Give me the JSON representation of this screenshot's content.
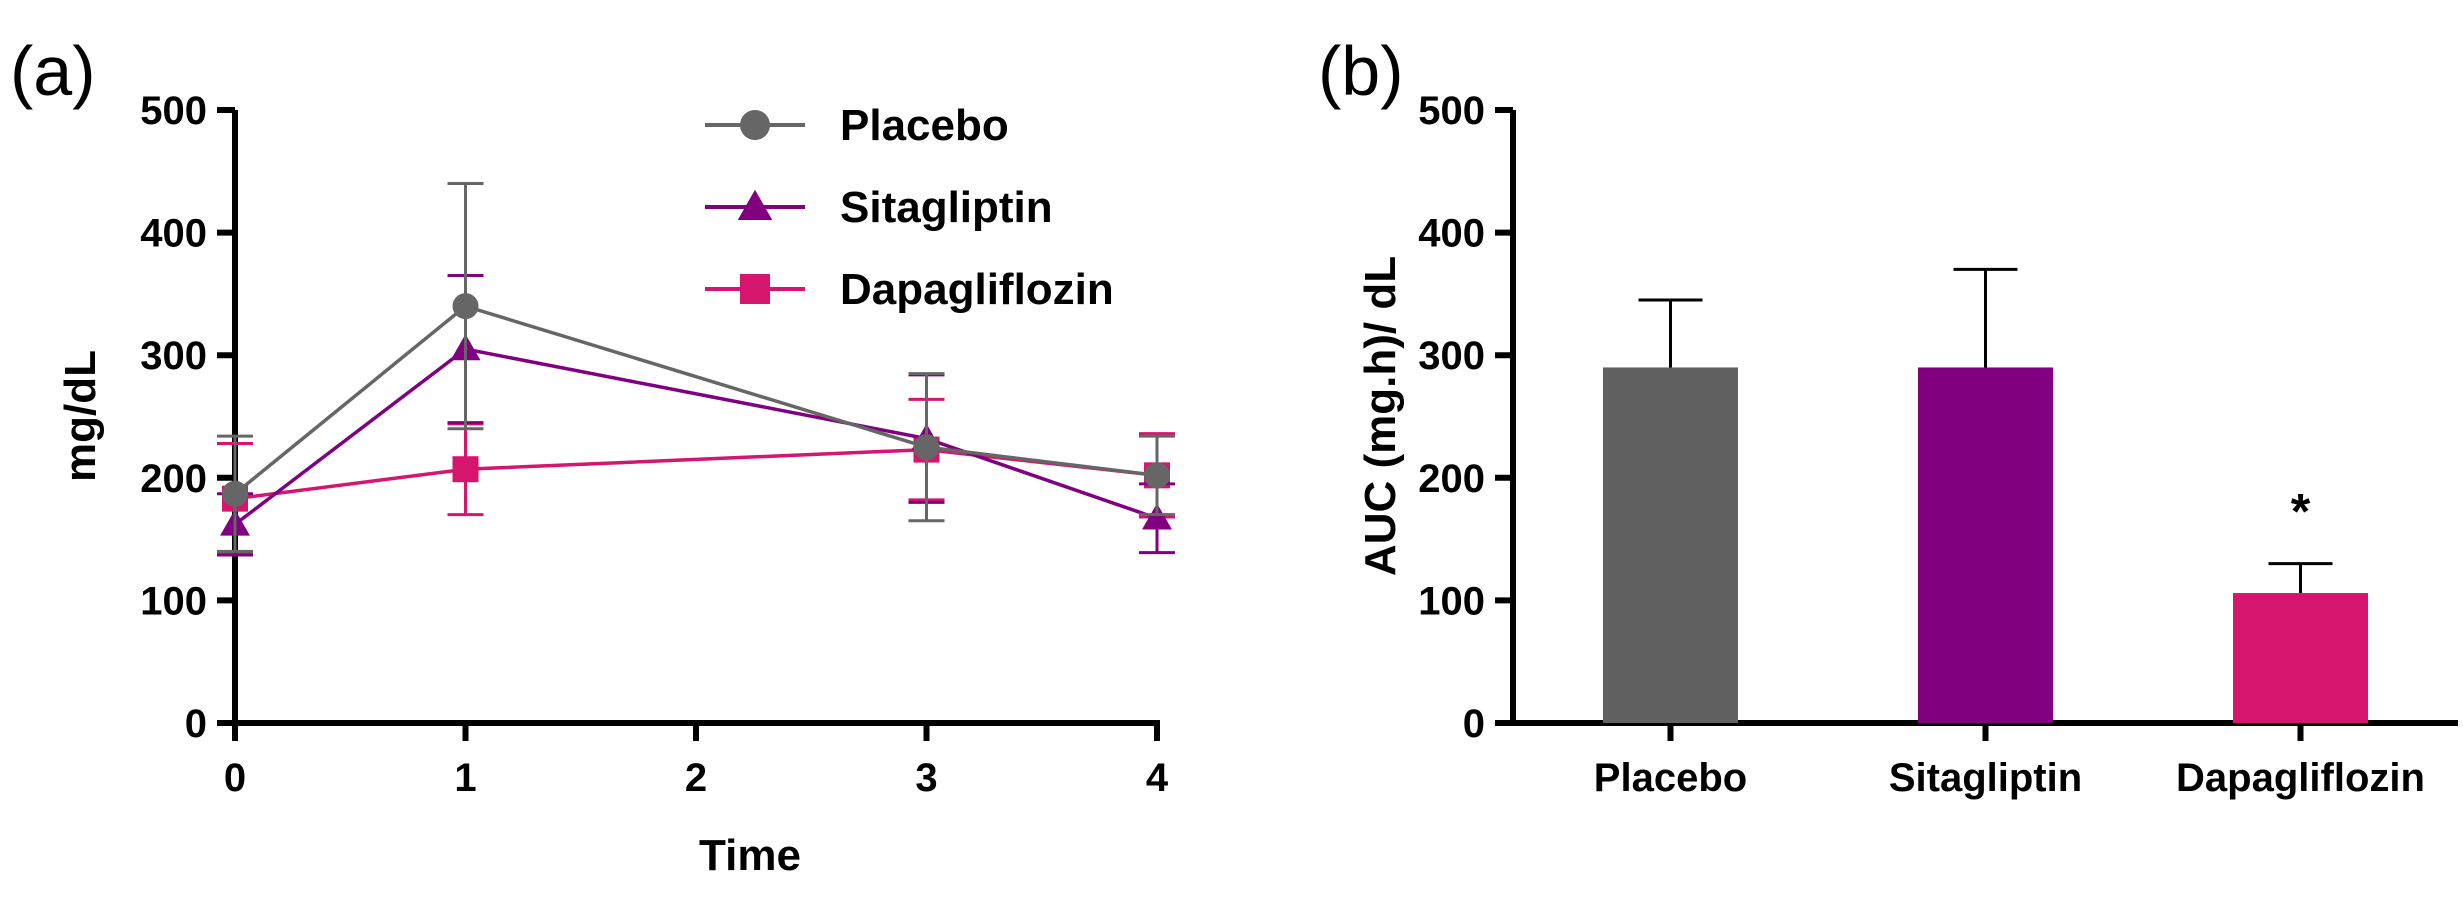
{
  "chart_data": [
    {
      "panel": "(a)",
      "type": "line",
      "xlabel": "Time",
      "ylabel": "mg/dL",
      "x": [
        0,
        1,
        3,
        4
      ],
      "xticks": [
        "0",
        "1",
        "2",
        "3",
        "4"
      ],
      "xlim": [
        0,
        4
      ],
      "yticks": [
        "0",
        "100",
        "200",
        "300",
        "400",
        "500"
      ],
      "ylim": [
        0,
        500
      ],
      "legend_position": "top-right",
      "series": [
        {
          "name": "Placebo",
          "marker": "circle",
          "color": "#666666",
          "values": [
            187,
            340,
            225,
            202
          ],
          "errors": [
            47,
            100,
            60,
            32
          ]
        },
        {
          "name": "Sitagliptin",
          "marker": "triangle",
          "color": "#800080",
          "values": [
            162,
            305,
            232,
            167
          ],
          "errors": [
            25,
            60,
            52,
            28
          ]
        },
        {
          "name": "Dapagliflozin",
          "marker": "square",
          "color": "#D6156F",
          "values": [
            183,
            207,
            223,
            202
          ],
          "errors": [
            45,
            37,
            41,
            34
          ]
        }
      ]
    },
    {
      "panel": "(b)",
      "type": "bar",
      "ylabel": "AUC (mg.h)/ dL",
      "categories": [
        "Placebo",
        "Sitagliptin",
        "Dapagliflozin"
      ],
      "colors": [
        "#616161",
        "#800080",
        "#D6156F"
      ],
      "values": [
        290,
        290,
        106
      ],
      "errors": [
        55,
        80,
        24
      ],
      "yticks": [
        "0",
        "100",
        "200",
        "300",
        "400",
        "500"
      ],
      "ylim": [
        0,
        500
      ],
      "annotations": [
        {
          "category": "Dapagliflozin",
          "text": "*"
        }
      ]
    }
  ]
}
